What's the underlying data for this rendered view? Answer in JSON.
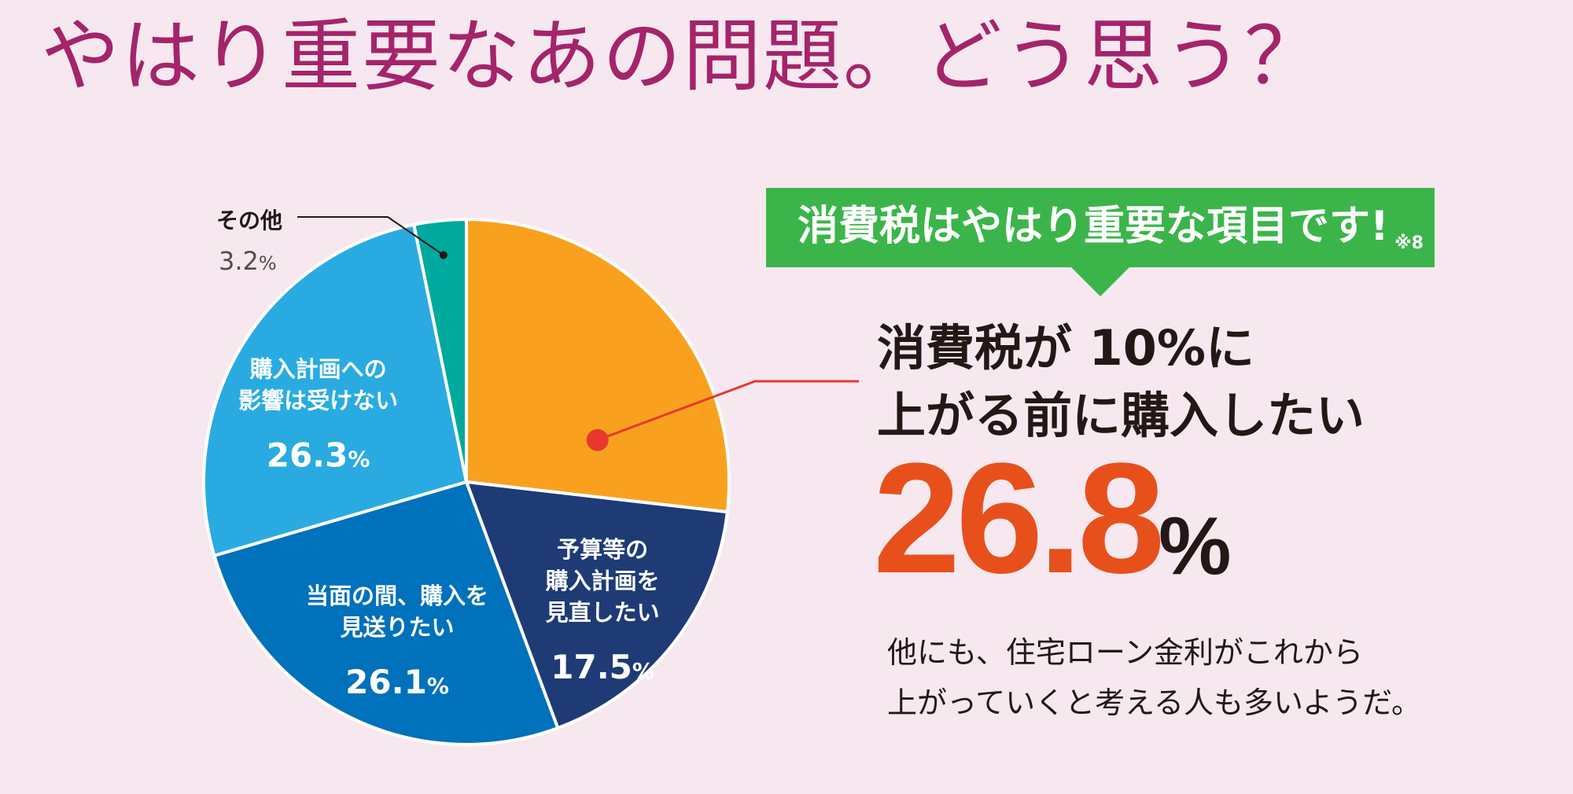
{
  "title": "やはり重要なあの問題。どう思う？",
  "banner": {
    "text": "消費税はやはり重要な項目です!",
    "note": "※8"
  },
  "headline": [
    "消費税が 10%に",
    "上がる前に購入したい"
  ],
  "highlight": {
    "value": "26.8",
    "unit": "%"
  },
  "note": [
    "他にも、住宅ローン金利がこれから",
    "上がっていくと考える人も多いようだ。"
  ],
  "chart_data": {
    "type": "pie",
    "unit": "%",
    "slices": [
      {
        "label": [
          "消費税が 10%に",
          "上がる前に購入したい"
        ],
        "value": 26.8,
        "value_text": "",
        "color": "#f9a11f"
      },
      {
        "label": [
          "予算等の",
          "購入計画を",
          "見直したい"
        ],
        "value": 17.5,
        "value_text": "17.5",
        "color": "#1e3b76"
      },
      {
        "label": [
          "当面の間、購入を",
          "見送りたい"
        ],
        "value": 26.1,
        "value_text": "26.1",
        "color": "#0071bb"
      },
      {
        "label": [
          "購入計画への",
          "影響は受けない"
        ],
        "value": 26.3,
        "value_text": "26.3",
        "color": "#29abe2"
      },
      {
        "label": [
          "その他"
        ],
        "value": 3.2,
        "value_text": "3.2",
        "color": "#00a99d"
      }
    ],
    "colors": {
      "pointer": "#e8382e",
      "label_text": "#ffffff",
      "dark_text": "#231815"
    }
  }
}
